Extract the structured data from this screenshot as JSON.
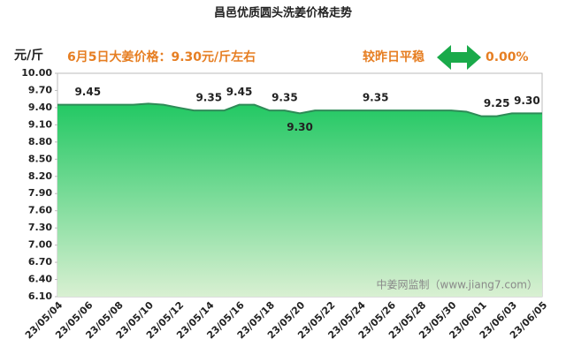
{
  "chart_data": {
    "type": "area",
    "title": "昌邑优质圆头洗姜价格走势",
    "y_label": "元/斤",
    "annotation": "6月5日大姜价格：9.30元/斤左右",
    "change_label": "较昨日平稳",
    "change_value": "0.00%",
    "watermark": "中姜网监制（www.jiang7.com）",
    "categories": [
      "23/05/04",
      null,
      "23/05/06",
      null,
      "23/05/08",
      null,
      "23/05/10",
      null,
      "23/05/12",
      null,
      "23/05/14",
      null,
      "23/05/16",
      null,
      "23/05/18",
      null,
      "23/05/20",
      null,
      "23/05/22",
      null,
      "23/05/24",
      null,
      "23/05/26",
      null,
      "23/05/28",
      null,
      "23/05/30",
      null,
      "23/06/01",
      null,
      "23/06/03",
      null,
      "23/06/05"
    ],
    "values": [
      9.45,
      9.45,
      9.45,
      9.45,
      9.45,
      9.45,
      9.47,
      9.45,
      9.4,
      9.35,
      9.35,
      9.35,
      9.45,
      9.45,
      9.35,
      9.35,
      9.3,
      9.35,
      9.35,
      9.35,
      9.35,
      9.35,
      9.35,
      9.35,
      9.35,
      9.35,
      9.35,
      9.33,
      9.25,
      9.25,
      9.3,
      9.3,
      9.3
    ],
    "value_labels": [
      null,
      null,
      "9.45",
      null,
      null,
      null,
      null,
      null,
      null,
      null,
      "9.35",
      null,
      "9.45",
      null,
      null,
      "9.35",
      "9.30",
      null,
      null,
      null,
      null,
      "9.35",
      null,
      null,
      null,
      null,
      null,
      null,
      null,
      "9.25",
      null,
      "9.30",
      null
    ],
    "color": "#2ecc71",
    "line_color": "#2e8b57",
    "ylim": [
      6.1,
      10.0
    ],
    "yticks": [
      {
        "value": 6.1,
        "label": "6.10"
      },
      {
        "value": 6.4,
        "label": "6.40"
      },
      {
        "value": 6.7,
        "label": "6.70"
      },
      {
        "value": 7.0,
        "label": "7.00"
      },
      {
        "value": 7.3,
        "label": "7.30"
      },
      {
        "value": 7.6,
        "label": "7.60"
      },
      {
        "value": 7.9,
        "label": "7.90"
      },
      {
        "value": 8.2,
        "label": "8.20"
      },
      {
        "value": 8.5,
        "label": "8.50"
      },
      {
        "value": 8.8,
        "label": "8.80"
      },
      {
        "value": 9.1,
        "label": "9.10"
      },
      {
        "value": 9.4,
        "label": "9.40"
      },
      {
        "value": 9.7,
        "label": "9.70"
      },
      {
        "value": 10.0,
        "label": "10.00"
      }
    ],
    "grid": false
  }
}
